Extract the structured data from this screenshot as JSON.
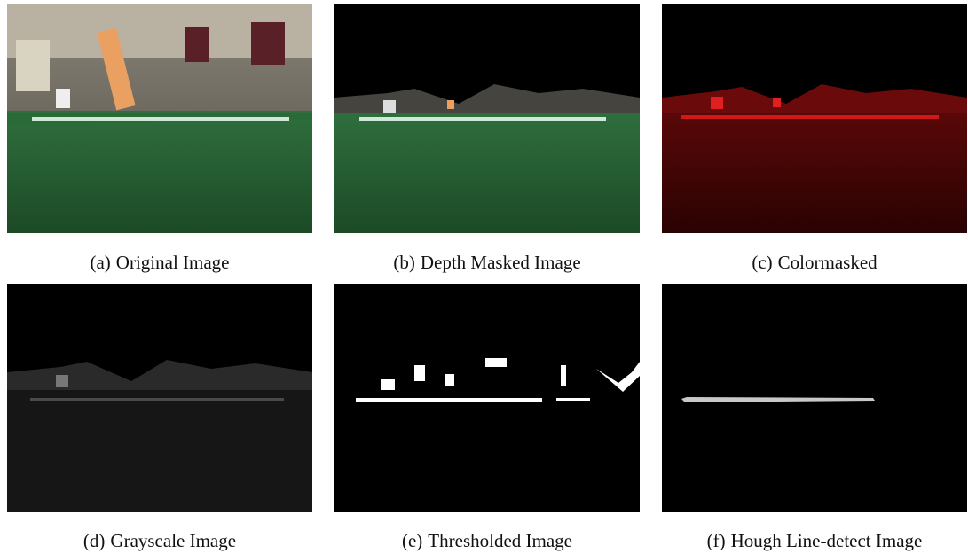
{
  "figure": {
    "panels": [
      {
        "label": "(a)",
        "caption": "Original Image"
      },
      {
        "label": "(b)",
        "caption": "Depth Masked Image"
      },
      {
        "label": "(c)",
        "caption": "Colormasked"
      },
      {
        "label": "(d)",
        "caption": "Grayscale Image"
      },
      {
        "label": "(e)",
        "caption": "Thresholded Image"
      },
      {
        "label": "(f)",
        "caption": "Hough Line-detect Image"
      }
    ]
  }
}
